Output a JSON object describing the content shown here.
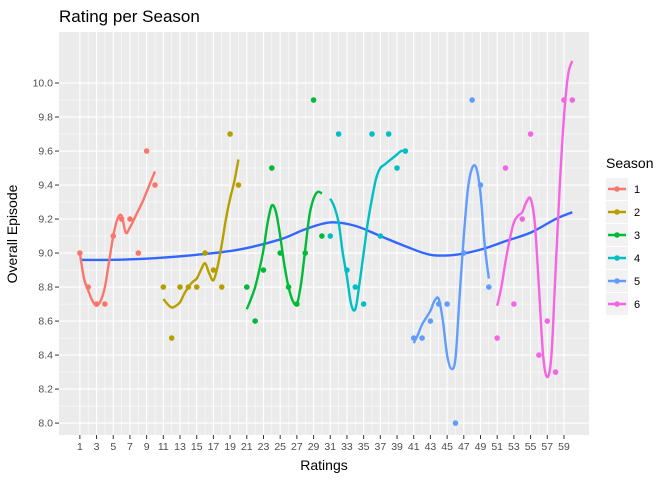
{
  "chart_data": {
    "type": "line",
    "title": "Rating per Season",
    "xlabel": "Ratings",
    "ylabel": "Overall Episode",
    "xlim": [
      -1.5,
      62
    ],
    "ylim": [
      7.93,
      10.3
    ],
    "x_ticks": [
      1,
      3,
      5,
      7,
      9,
      11,
      13,
      15,
      17,
      19,
      21,
      23,
      25,
      27,
      29,
      31,
      33,
      35,
      37,
      39,
      41,
      43,
      45,
      47,
      49,
      51,
      53,
      55,
      57,
      59
    ],
    "y_ticks": [
      8.0,
      8.2,
      8.4,
      8.6,
      8.8,
      9.0,
      9.2,
      9.4,
      9.6,
      9.8,
      10.0
    ],
    "y_tick_labels": [
      "8.0",
      "8.2",
      "8.4",
      "8.6",
      "8.8",
      "9.0",
      "9.2",
      "9.4",
      "9.6",
      "9.8",
      "10.0"
    ],
    "grid": true,
    "background": "#ebebeb",
    "legend": {
      "title": "Season",
      "position": "right"
    },
    "series": [
      {
        "name": "1",
        "color": "#f8766d",
        "points": [
          [
            1,
            9.0
          ],
          [
            2,
            8.8
          ],
          [
            3,
            8.7
          ],
          [
            4,
            8.7
          ],
          [
            5,
            9.1
          ],
          [
            6,
            9.2
          ],
          [
            7,
            9.2
          ],
          [
            8,
            9.0
          ],
          [
            9,
            9.6
          ],
          [
            10,
            9.4
          ]
        ],
        "smooth": [
          [
            1,
            9.0
          ],
          [
            1.5,
            8.85
          ],
          [
            2,
            8.78
          ],
          [
            2.5,
            8.72
          ],
          [
            3,
            8.69
          ],
          [
            3.5,
            8.72
          ],
          [
            4,
            8.8
          ],
          [
            4.5,
            8.95
          ],
          [
            5,
            9.1
          ],
          [
            5.5,
            9.2
          ],
          [
            6,
            9.22
          ],
          [
            6.5,
            9.12
          ],
          [
            7,
            9.15
          ],
          [
            7.5,
            9.2
          ],
          [
            8,
            9.25
          ],
          [
            8.5,
            9.3
          ],
          [
            9,
            9.36
          ],
          [
            9.5,
            9.42
          ],
          [
            10,
            9.48
          ]
        ]
      },
      {
        "name": "2",
        "color": "#b79f00",
        "points": [
          [
            11,
            8.8
          ],
          [
            12,
            8.5
          ],
          [
            13,
            8.8
          ],
          [
            14,
            8.8
          ],
          [
            15,
            8.8
          ],
          [
            16,
            9.0
          ],
          [
            17,
            8.9
          ],
          [
            18,
            8.8
          ],
          [
            19,
            9.7
          ],
          [
            20,
            9.4
          ]
        ],
        "smooth": [
          [
            11,
            8.73
          ],
          [
            11.5,
            8.7
          ],
          [
            12,
            8.68
          ],
          [
            12.5,
            8.69
          ],
          [
            13,
            8.71
          ],
          [
            13.5,
            8.76
          ],
          [
            14,
            8.8
          ],
          [
            14.5,
            8.83
          ],
          [
            15,
            8.85
          ],
          [
            15.5,
            8.9
          ],
          [
            16,
            8.94
          ],
          [
            16.5,
            8.88
          ],
          [
            17,
            8.84
          ],
          [
            17.5,
            8.92
          ],
          [
            18,
            9.05
          ],
          [
            18.5,
            9.2
          ],
          [
            19,
            9.32
          ],
          [
            19.5,
            9.42
          ],
          [
            20,
            9.55
          ]
        ]
      },
      {
        "name": "3",
        "color": "#00ba38",
        "points": [
          [
            21,
            8.8
          ],
          [
            22,
            8.6
          ],
          [
            23,
            8.9
          ],
          [
            24,
            9.5
          ],
          [
            25,
            9.0
          ],
          [
            26,
            8.8
          ],
          [
            27,
            8.7
          ],
          [
            28,
            9.0
          ],
          [
            29,
            9.9
          ],
          [
            30,
            9.1
          ]
        ],
        "smooth": [
          [
            21,
            8.67
          ],
          [
            21.5,
            8.73
          ],
          [
            22,
            8.8
          ],
          [
            22.5,
            8.9
          ],
          [
            23,
            9.02
          ],
          [
            23.5,
            9.18
          ],
          [
            24,
            9.28
          ],
          [
            24.5,
            9.24
          ],
          [
            25,
            9.1
          ],
          [
            25.5,
            8.93
          ],
          [
            26,
            8.8
          ],
          [
            26.5,
            8.72
          ],
          [
            27,
            8.7
          ],
          [
            27.5,
            8.82
          ],
          [
            28,
            9.02
          ],
          [
            28.5,
            9.22
          ],
          [
            29,
            9.32
          ],
          [
            29.5,
            9.36
          ],
          [
            30,
            9.35
          ]
        ]
      },
      {
        "name": "4",
        "color": "#00bfc4",
        "points": [
          [
            31,
            9.1
          ],
          [
            32,
            9.7
          ],
          [
            33,
            8.9
          ],
          [
            34,
            8.8
          ],
          [
            35,
            8.7
          ],
          [
            36,
            9.7
          ],
          [
            37,
            9.1
          ],
          [
            38,
            9.7
          ],
          [
            39,
            9.5
          ],
          [
            40,
            9.6
          ]
        ],
        "smooth": [
          [
            31,
            9.32
          ],
          [
            31.5,
            9.27
          ],
          [
            32,
            9.18
          ],
          [
            32.5,
            9.0
          ],
          [
            33,
            8.86
          ],
          [
            33.5,
            8.7
          ],
          [
            34,
            8.67
          ],
          [
            34.5,
            8.82
          ],
          [
            35,
            9.0
          ],
          [
            35.5,
            9.18
          ],
          [
            36,
            9.32
          ],
          [
            36.5,
            9.44
          ],
          [
            37,
            9.5
          ],
          [
            37.5,
            9.52
          ],
          [
            38,
            9.54
          ],
          [
            38.5,
            9.56
          ],
          [
            39,
            9.58
          ],
          [
            39.5,
            9.6
          ],
          [
            40,
            9.6
          ]
        ]
      },
      {
        "name": "5",
        "color": "#619cff",
        "points": [
          [
            41,
            8.5
          ],
          [
            42,
            8.5
          ],
          [
            43,
            8.6
          ],
          [
            44,
            8.7
          ],
          [
            45,
            8.7
          ],
          [
            46,
            8.0
          ],
          [
            47,
            9.0
          ],
          [
            48,
            9.9
          ],
          [
            49,
            9.4
          ],
          [
            50,
            8.8
          ]
        ],
        "smooth": [
          [
            41,
            8.47
          ],
          [
            41.5,
            8.52
          ],
          [
            42,
            8.58
          ],
          [
            42.5,
            8.62
          ],
          [
            43,
            8.66
          ],
          [
            43.5,
            8.72
          ],
          [
            44,
            8.73
          ],
          [
            44.5,
            8.6
          ],
          [
            45,
            8.4
          ],
          [
            45.5,
            8.32
          ],
          [
            46,
            8.38
          ],
          [
            46.5,
            8.75
          ],
          [
            47,
            9.1
          ],
          [
            47.5,
            9.38
          ],
          [
            48,
            9.5
          ],
          [
            48.5,
            9.5
          ],
          [
            49,
            9.35
          ],
          [
            49.5,
            9.05
          ],
          [
            50,
            8.85
          ]
        ]
      },
      {
        "name": "6",
        "color": "#f564e3",
        "points": [
          [
            51,
            8.5
          ],
          [
            52,
            9.5
          ],
          [
            53,
            8.7
          ],
          [
            54,
            9.2
          ],
          [
            55,
            9.7
          ],
          [
            56,
            8.4
          ],
          [
            57,
            8.6
          ],
          [
            58,
            8.3
          ],
          [
            59,
            9.9
          ],
          [
            60,
            9.9
          ]
        ],
        "smooth": [
          [
            51,
            8.69
          ],
          [
            51.5,
            8.8
          ],
          [
            52,
            8.95
          ],
          [
            52.5,
            9.08
          ],
          [
            53,
            9.18
          ],
          [
            53.5,
            9.22
          ],
          [
            54,
            9.24
          ],
          [
            54.5,
            9.3
          ],
          [
            55,
            9.32
          ],
          [
            55.5,
            9.18
          ],
          [
            56,
            8.8
          ],
          [
            56.5,
            8.4
          ],
          [
            57,
            8.27
          ],
          [
            57.5,
            8.4
          ],
          [
            58,
            8.9
          ],
          [
            58.5,
            9.4
          ],
          [
            59,
            9.8
          ],
          [
            59.5,
            10.05
          ],
          [
            60,
            10.13
          ]
        ]
      }
    ],
    "overall_trend": {
      "color": "#3366ff",
      "smooth": [
        [
          1,
          8.96
        ],
        [
          5,
          8.96
        ],
        [
          10,
          8.97
        ],
        [
          15,
          8.99
        ],
        [
          20,
          9.02
        ],
        [
          25,
          9.08
        ],
        [
          28,
          9.14
        ],
        [
          31,
          9.18
        ],
        [
          34,
          9.16
        ],
        [
          37,
          9.1
        ],
        [
          40,
          9.04
        ],
        [
          43,
          8.99
        ],
        [
          46,
          8.99
        ],
        [
          49,
          9.02
        ],
        [
          52,
          9.07
        ],
        [
          55,
          9.12
        ],
        [
          58,
          9.2
        ],
        [
          60,
          9.24
        ]
      ]
    }
  }
}
